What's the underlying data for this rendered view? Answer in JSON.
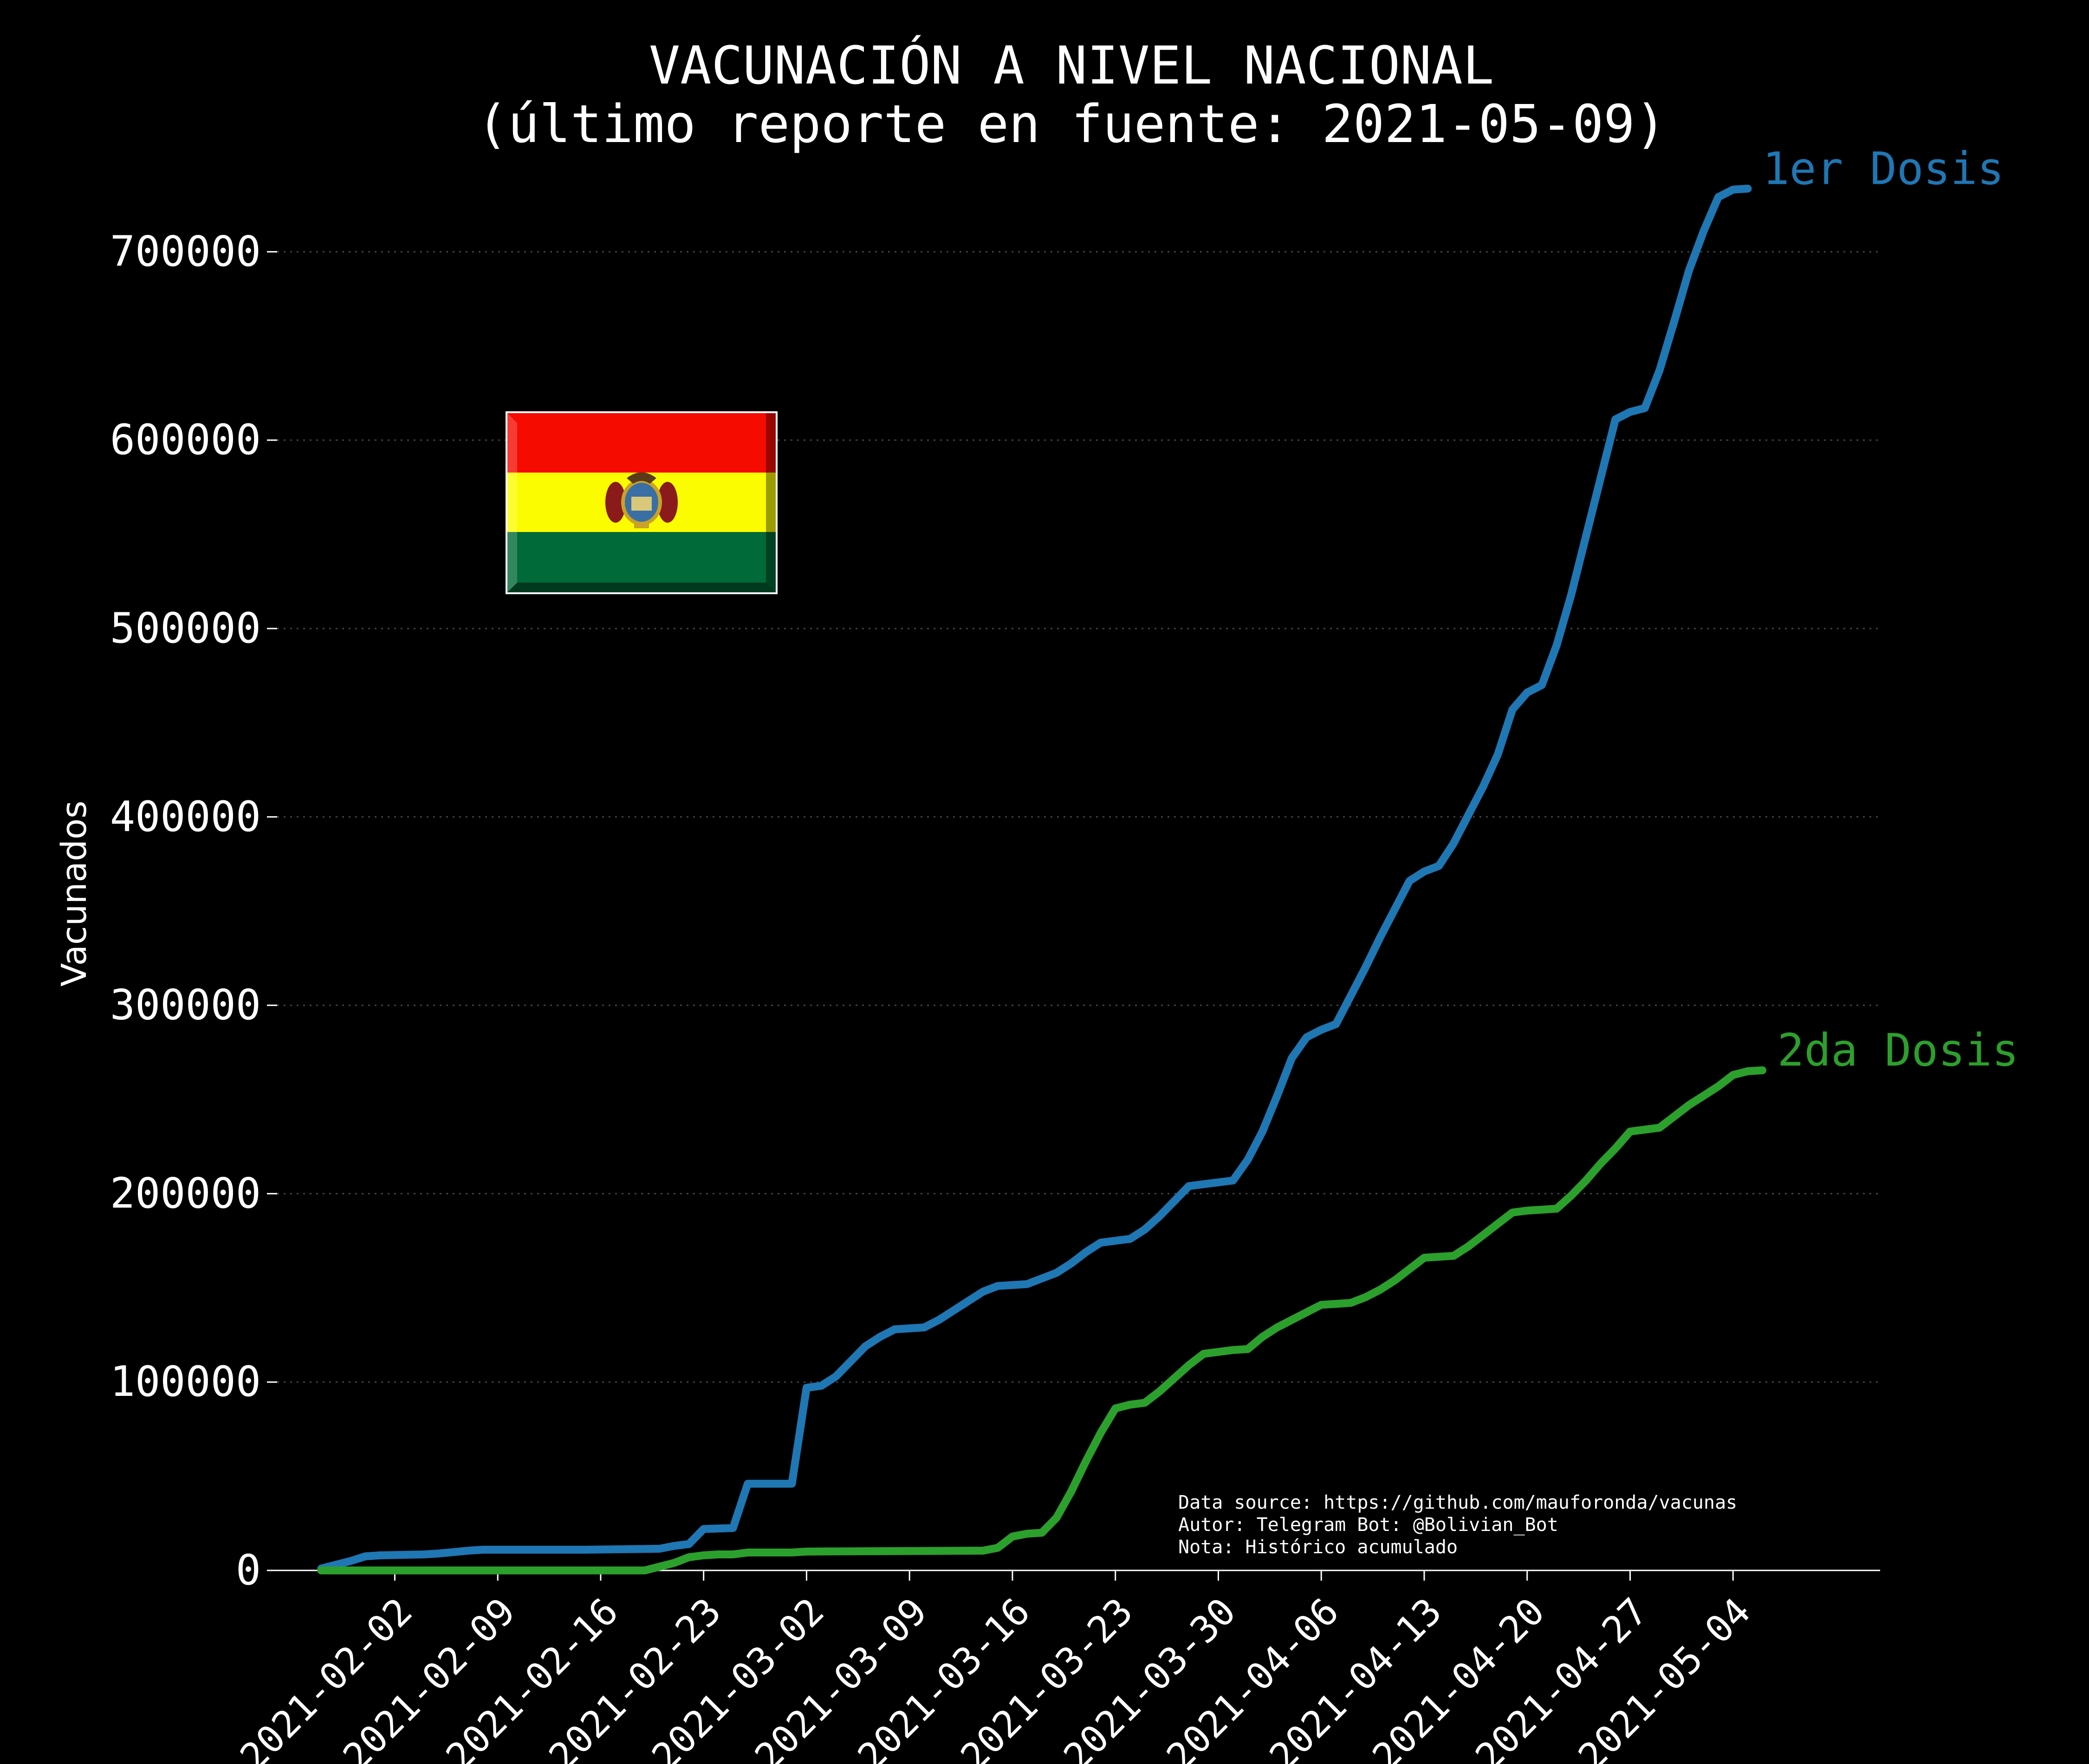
{
  "chart_data": {
    "type": "line",
    "title_line1": "VACUNACIÓN A NIVEL NACIONAL",
    "title_line2": "(último reporte en fuente: 2021-05-09)",
    "xlabel": "",
    "ylabel": "Vacunados",
    "ylim": [
      0,
      740000
    ],
    "xlim": [
      "2021-01-25",
      "2021-05-14"
    ],
    "yticks": [
      0,
      100000,
      200000,
      300000,
      400000,
      500000,
      600000,
      700000
    ],
    "ytick_labels": [
      "0",
      "100000",
      "200000",
      "300000",
      "400000",
      "500000",
      "600000",
      "700000"
    ],
    "xticks": [
      "2021-02-02",
      "2021-02-09",
      "2021-02-16",
      "2021-02-23",
      "2021-03-02",
      "2021-03-09",
      "2021-03-16",
      "2021-03-23",
      "2021-03-30",
      "2021-04-06",
      "2021-04-13",
      "2021-04-20",
      "2021-04-27",
      "2021-05-04"
    ],
    "grid": "horizontal-dotted",
    "background": "#000000",
    "series": [
      {
        "name": "1er Dosis",
        "color": "#1f77b4",
        "points": [
          [
            "2021-01-28",
            1000
          ],
          [
            "2021-01-30",
            5000
          ],
          [
            "2021-01-31",
            7500
          ],
          [
            "2021-02-01",
            8000
          ],
          [
            "2021-02-04",
            8500
          ],
          [
            "2021-02-05",
            9000
          ],
          [
            "2021-02-07",
            10500
          ],
          [
            "2021-02-08",
            11000
          ],
          [
            "2021-02-15",
            11000
          ],
          [
            "2021-02-20",
            11500
          ],
          [
            "2021-02-21",
            13000
          ],
          [
            "2021-02-22",
            14000
          ],
          [
            "2021-02-23",
            22000
          ],
          [
            "2021-02-25",
            22500
          ],
          [
            "2021-02-26",
            46000
          ],
          [
            "2021-03-01",
            46000
          ],
          [
            "2021-03-02",
            97000
          ],
          [
            "2021-03-03",
            98000
          ],
          [
            "2021-03-04",
            103000
          ],
          [
            "2021-03-05",
            111000
          ],
          [
            "2021-03-06",
            119000
          ],
          [
            "2021-03-07",
            124000
          ],
          [
            "2021-03-08",
            128000
          ],
          [
            "2021-03-10",
            129000
          ],
          [
            "2021-03-11",
            133000
          ],
          [
            "2021-03-12",
            138000
          ],
          [
            "2021-03-13",
            143000
          ],
          [
            "2021-03-14",
            148000
          ],
          [
            "2021-03-15",
            151000
          ],
          [
            "2021-03-17",
            152000
          ],
          [
            "2021-03-18",
            155000
          ],
          [
            "2021-03-19",
            158000
          ],
          [
            "2021-03-20",
            163000
          ],
          [
            "2021-03-21",
            169000
          ],
          [
            "2021-03-22",
            174000
          ],
          [
            "2021-03-23",
            175000
          ],
          [
            "2021-03-24",
            176000
          ],
          [
            "2021-03-25",
            181000
          ],
          [
            "2021-03-26",
            188000
          ],
          [
            "2021-03-27",
            196000
          ],
          [
            "2021-03-28",
            204000
          ],
          [
            "2021-03-30",
            206000
          ],
          [
            "2021-03-31",
            207000
          ],
          [
            "2021-04-01",
            218000
          ],
          [
            "2021-04-02",
            233000
          ],
          [
            "2021-04-03",
            252000
          ],
          [
            "2021-04-04",
            272000
          ],
          [
            "2021-04-05",
            283000
          ],
          [
            "2021-04-06",
            287000
          ],
          [
            "2021-04-07",
            290000
          ],
          [
            "2021-04-08",
            305000
          ],
          [
            "2021-04-09",
            320000
          ],
          [
            "2021-04-10",
            336000
          ],
          [
            "2021-04-11",
            351000
          ],
          [
            "2021-04-12",
            366000
          ],
          [
            "2021-04-13",
            371000
          ],
          [
            "2021-04-14",
            374000
          ],
          [
            "2021-04-15",
            386000
          ],
          [
            "2021-04-16",
            401000
          ],
          [
            "2021-04-17",
            416000
          ],
          [
            "2021-04-18",
            433000
          ],
          [
            "2021-04-19",
            457000
          ],
          [
            "2021-04-20",
            466000
          ],
          [
            "2021-04-21",
            470000
          ],
          [
            "2021-04-22",
            491000
          ],
          [
            "2021-04-23",
            518000
          ],
          [
            "2021-04-24",
            549000
          ],
          [
            "2021-04-25",
            580000
          ],
          [
            "2021-04-26",
            611000
          ],
          [
            "2021-04-27",
            615000
          ],
          [
            "2021-04-28",
            617000
          ],
          [
            "2021-04-29",
            637000
          ],
          [
            "2021-04-30",
            663000
          ],
          [
            "2021-05-01",
            690000
          ],
          [
            "2021-05-02",
            711000
          ],
          [
            "2021-05-03",
            729000
          ],
          [
            "2021-05-04",
            733000
          ],
          [
            "2021-05-05",
            733500
          ]
        ]
      },
      {
        "name": "2da Dosis",
        "color": "#2ca02c",
        "points": [
          [
            "2021-01-28",
            0
          ],
          [
            "2021-02-19",
            0
          ],
          [
            "2021-02-20",
            2000
          ],
          [
            "2021-02-21",
            4000
          ],
          [
            "2021-02-22",
            7000
          ],
          [
            "2021-02-23",
            8000
          ],
          [
            "2021-02-24",
            8500
          ],
          [
            "2021-02-25",
            8500
          ],
          [
            "2021-02-26",
            9500
          ],
          [
            "2021-03-01",
            9500
          ],
          [
            "2021-03-02",
            10000
          ],
          [
            "2021-03-14",
            10500
          ],
          [
            "2021-03-15",
            12000
          ],
          [
            "2021-03-16",
            18000
          ],
          [
            "2021-03-17",
            19500
          ],
          [
            "2021-03-18",
            20000
          ],
          [
            "2021-03-19",
            28000
          ],
          [
            "2021-03-20",
            42000
          ],
          [
            "2021-03-21",
            58000
          ],
          [
            "2021-03-22",
            73000
          ],
          [
            "2021-03-23",
            86000
          ],
          [
            "2021-03-24",
            88000
          ],
          [
            "2021-03-25",
            89000
          ],
          [
            "2021-03-26",
            95000
          ],
          [
            "2021-03-27",
            102000
          ],
          [
            "2021-03-28",
            109000
          ],
          [
            "2021-03-29",
            115000
          ],
          [
            "2021-03-30",
            116000
          ],
          [
            "2021-03-31",
            117000
          ],
          [
            "2021-04-01",
            117500
          ],
          [
            "2021-04-02",
            124000
          ],
          [
            "2021-04-03",
            129000
          ],
          [
            "2021-04-04",
            133000
          ],
          [
            "2021-04-05",
            137000
          ],
          [
            "2021-04-06",
            141000
          ],
          [
            "2021-04-07",
            141500
          ],
          [
            "2021-04-08",
            142000
          ],
          [
            "2021-04-09",
            145000
          ],
          [
            "2021-04-10",
            149000
          ],
          [
            "2021-04-11",
            154000
          ],
          [
            "2021-04-12",
            160000
          ],
          [
            "2021-04-13",
            166000
          ],
          [
            "2021-04-14",
            166500
          ],
          [
            "2021-04-15",
            167000
          ],
          [
            "2021-04-16",
            172000
          ],
          [
            "2021-04-17",
            178000
          ],
          [
            "2021-04-18",
            184000
          ],
          [
            "2021-04-19",
            190000
          ],
          [
            "2021-04-20",
            191000
          ],
          [
            "2021-04-21",
            191500
          ],
          [
            "2021-04-22",
            192000
          ],
          [
            "2021-04-23",
            199000
          ],
          [
            "2021-04-24",
            207000
          ],
          [
            "2021-04-25",
            216000
          ],
          [
            "2021-04-26",
            224000
          ],
          [
            "2021-04-27",
            233000
          ],
          [
            "2021-04-28",
            234000
          ],
          [
            "2021-04-29",
            235000
          ],
          [
            "2021-04-30",
            241000
          ],
          [
            "2021-05-01",
            247000
          ],
          [
            "2021-05-02",
            252000
          ],
          [
            "2021-05-03",
            257000
          ],
          [
            "2021-05-04",
            263000
          ],
          [
            "2021-05-05",
            265000
          ],
          [
            "2021-05-06",
            265500
          ]
        ]
      }
    ]
  },
  "footnote": {
    "line1": "Data source: https://github.com/mauforonda/vacunas",
    "line2": "Autor: Telegram Bot: @Bolivian_Bot",
    "line3": "Nota: Histórico acumulado"
  },
  "flag": {
    "stripe_colors": [
      "#f50b00",
      "#fcfc00",
      "#006a38"
    ]
  }
}
